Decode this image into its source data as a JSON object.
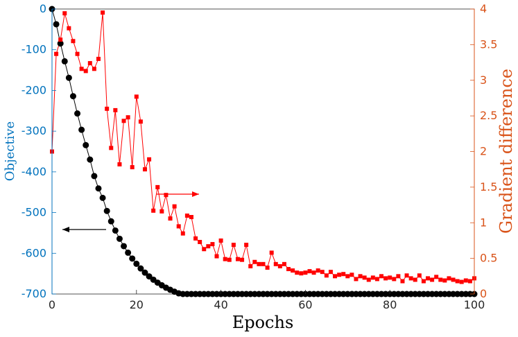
{
  "chart_data": {
    "type": "line",
    "xlabel": "Epochs",
    "ylabel_left": "Objective",
    "ylabel_right": "Gradient difference",
    "xlim": [
      0,
      100
    ],
    "ylim_left": [
      -700,
      0
    ],
    "ylim_right": [
      0,
      4
    ],
    "xticks": [
      "0",
      "20",
      "40",
      "60",
      "80",
      "100"
    ],
    "yticks_left": [
      "0",
      "-100",
      "-200",
      "-300",
      "-400",
      "-500",
      "-600",
      "-700"
    ],
    "yticks_right": [
      "0",
      "0.5",
      "1",
      "1.5",
      "2",
      "2.5",
      "3",
      "3.5",
      "4"
    ],
    "grid": false,
    "series": [
      {
        "axis": "left",
        "color": "#000000",
        "marker": "circle",
        "x": [
          0,
          1,
          2,
          3,
          4,
          5,
          6,
          7,
          8,
          9,
          10,
          11,
          12,
          13,
          14,
          15,
          16,
          17,
          18,
          19,
          20,
          21,
          22,
          23,
          24,
          25,
          26,
          27,
          28,
          29,
          30,
          31,
          32,
          33,
          34,
          35,
          36,
          37,
          38,
          39,
          40,
          41,
          42,
          43,
          44,
          45,
          46,
          47,
          48,
          49,
          50,
          51,
          52,
          53,
          54,
          55,
          56,
          57,
          58,
          59,
          60,
          61,
          62,
          63,
          64,
          65,
          66,
          67,
          68,
          69,
          70,
          71,
          72,
          73,
          74,
          75,
          76,
          77,
          78,
          79,
          80,
          81,
          82,
          83,
          84,
          85,
          86,
          87,
          88,
          89,
          90,
          91,
          92,
          93,
          94,
          95,
          96,
          97,
          98,
          99,
          100
        ],
        "values": [
          0,
          -37.4,
          -84.7,
          -128.4,
          -169.0,
          -214.1,
          -256.6,
          -296.6,
          -334.3,
          -369.8,
          -410.3,
          -440.7,
          -463.9,
          -496.0,
          -521.4,
          -544.1,
          -564.3,
          -582.4,
          -598.5,
          -612.9,
          -625.8,
          -637.3,
          -647.5,
          -656.7,
          -664.8,
          -672.1,
          -678.6,
          -684.5,
          -689.6,
          -694.3,
          -698.4,
          -702.1,
          -705.4,
          -708.4,
          -711.0,
          -713.4,
          -715.5,
          -717.4,
          -719.0,
          -720.5,
          -721.8,
          -723.0,
          -724.1,
          -725.0,
          -725.9,
          -726.6,
          -727.3,
          -727.9,
          -728.4,
          -728.9,
          -729.3,
          -729.7,
          -730.0,
          -730.3,
          -730.6,
          -730.8,
          -731.0,
          -731.2,
          -731.4,
          -731.5,
          -731.7,
          -731.8,
          -731.9,
          -732.0,
          -732.0,
          -732.1,
          -732.2,
          -732.2,
          -732.3,
          -732.3,
          -732.4,
          -732.4,
          -732.4,
          -732.5,
          -732.5,
          -732.5,
          -732.5,
          -732.5,
          -732.6,
          -732.6,
          -732.6,
          -732.6,
          -732.6,
          -732.6,
          -732.6,
          -732.6,
          -732.6,
          -732.7,
          -732.7,
          -732.7,
          -732.7,
          -732.7,
          -732.7,
          -732.7,
          -732.7,
          -732.7,
          -732.7,
          -732.7,
          -732.7,
          -732.7,
          -732.7
        ]
      },
      {
        "axis": "right",
        "color": "#FF0000",
        "marker": "square",
        "x": [
          0,
          1,
          2,
          3,
          4,
          5,
          6,
          7,
          8,
          9,
          10,
          11,
          12,
          13,
          14,
          15,
          16,
          17,
          18,
          19,
          20,
          21,
          22,
          23,
          24,
          25,
          26,
          27,
          28,
          29,
          30,
          31,
          32,
          33,
          34,
          35,
          36,
          37,
          38,
          39,
          40,
          41,
          42,
          43,
          44,
          45,
          46,
          47,
          48,
          49,
          50,
          51,
          52,
          53,
          54,
          55,
          56,
          57,
          58,
          59,
          60,
          61,
          62,
          63,
          64,
          65,
          66,
          67,
          68,
          69,
          70,
          71,
          72,
          73,
          74,
          75,
          76,
          77,
          78,
          79,
          80,
          81,
          82,
          83,
          84,
          85,
          86,
          87,
          88,
          89,
          90,
          91,
          92,
          93,
          94,
          95,
          96,
          97,
          98,
          99,
          100
        ],
        "values": [
          2.0,
          3.37,
          3.57,
          3.94,
          3.73,
          3.55,
          3.37,
          3.16,
          3.13,
          3.24,
          3.16,
          3.3,
          3.95,
          2.6,
          2.05,
          2.58,
          1.82,
          2.43,
          2.48,
          1.78,
          2.77,
          2.42,
          1.75,
          1.89,
          1.17,
          1.5,
          1.16,
          1.39,
          1.06,
          1.23,
          0.95,
          0.85,
          1.1,
          1.08,
          0.78,
          0.73,
          0.63,
          0.67,
          0.7,
          0.53,
          0.75,
          0.49,
          0.48,
          0.69,
          0.49,
          0.48,
          0.69,
          0.39,
          0.45,
          0.42,
          0.42,
          0.37,
          0.58,
          0.42,
          0.39,
          0.42,
          0.35,
          0.33,
          0.3,
          0.29,
          0.3,
          0.32,
          0.3,
          0.33,
          0.31,
          0.26,
          0.31,
          0.25,
          0.27,
          0.28,
          0.25,
          0.27,
          0.21,
          0.25,
          0.23,
          0.2,
          0.23,
          0.21,
          0.25,
          0.22,
          0.23,
          0.21,
          0.25,
          0.18,
          0.26,
          0.22,
          0.2,
          0.26,
          0.18,
          0.22,
          0.2,
          0.24,
          0.2,
          0.19,
          0.22,
          0.2,
          0.18,
          0.17,
          0.19,
          0.18,
          0.22
        ]
      }
    ],
    "annotations": [
      {
        "type": "arrow",
        "direction": "left",
        "color": "#000000"
      },
      {
        "type": "arrow",
        "direction": "right",
        "color": "#FF0000"
      }
    ]
  },
  "colors": {
    "left_axis": "#0072BD",
    "right_axis": "#D95319"
  }
}
